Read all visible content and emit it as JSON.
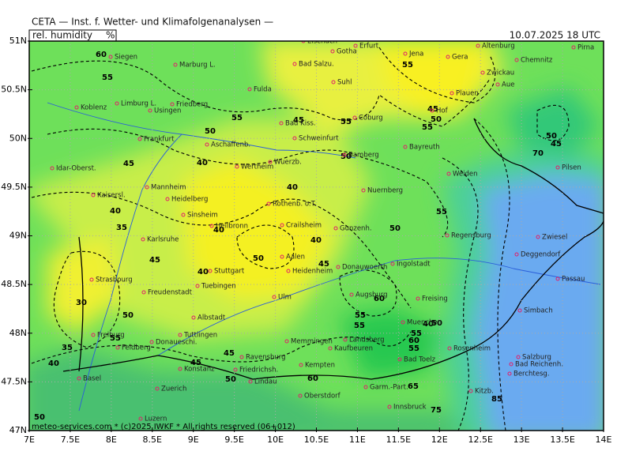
{
  "header": {
    "title": "CETA — Inst. f. Wetter- und Klimafolgenanalysen —",
    "parameter": "rel. humidity",
    "unit": "%",
    "valid_time": "10.07.2025 18 UTC"
  },
  "footer": "meteo-services.com * (c)2025 IWKF * All rights reserved (06+012)",
  "lat_ticks": [
    {
      "value": 51,
      "label": "51N"
    },
    {
      "value": 50.5,
      "label": "50.5N"
    },
    {
      "value": 50,
      "label": "50N"
    },
    {
      "value": 49.5,
      "label": "49.5N"
    },
    {
      "value": 49,
      "label": "49N"
    },
    {
      "value": 48.5,
      "label": "48.5N"
    },
    {
      "value": 48,
      "label": "48N"
    },
    {
      "value": 47.5,
      "label": "47.5N"
    },
    {
      "value": 47,
      "label": "47N"
    }
  ],
  "lon_ticks": [
    {
      "value": 7,
      "label": "7E"
    },
    {
      "value": 7.5,
      "label": "7.5E"
    },
    {
      "value": 8,
      "label": "8E"
    },
    {
      "value": 8.5,
      "label": "8.5E"
    },
    {
      "value": 9,
      "label": "9E"
    },
    {
      "value": 9.5,
      "label": "9.5E"
    },
    {
      "value": 10,
      "label": "10E"
    },
    {
      "value": 10.5,
      "label": "10.5E"
    },
    {
      "value": 11,
      "label": "11E"
    },
    {
      "value": 11.5,
      "label": "11.5E"
    },
    {
      "value": 12,
      "label": "12E"
    },
    {
      "value": 12.5,
      "label": "12.5E"
    },
    {
      "value": 13,
      "label": "13E"
    },
    {
      "value": 13.5,
      "label": "13.5E"
    },
    {
      "value": 14,
      "label": "14E"
    }
  ],
  "cities": [
    "Siegen",
    "Marburg L.",
    "Koblenz",
    "Limburg L.",
    "Friedberg",
    "Usingen",
    "Fulda",
    "Bad Salzu.",
    "Eisenach",
    "Gotha",
    "Erfurt",
    "Jena",
    "Gera",
    "Altenburg",
    "Chemnitz",
    "Pirna",
    "Plauen",
    "Zwickau",
    "Aue",
    "Hof",
    "Suhl",
    "Coburg",
    "Bad Kiss.",
    "Schweinfurt",
    "Frankfurt",
    "Aschaffenb.",
    "Wuerzb.",
    "Bamberg",
    "Bayreuth",
    "Weiden",
    "Pilsen",
    "Idar-Oberst.",
    "Wertheim",
    "Nuernberg",
    "Kaisersl.",
    "Mannheim",
    "Heidelberg",
    "Sinsheim",
    "Heilbronn",
    "Rothenb. o.T.",
    "Crailsheim",
    "Gunzenh.",
    "Karlsruhe",
    "Regensburg",
    "Zwiesel",
    "Deggendorf",
    "Aalen",
    "Heidenheim",
    "Donauwoerth",
    "Ingolstadt",
    "Stuttgart",
    "Strasbourg",
    "Tuebingen",
    "Freudenstadt",
    "Passau",
    "Ulm",
    "Augsburg",
    "Freising",
    "Albstadt",
    "Simbach",
    "Muenchen",
    "Tuttlingen",
    "Donaueschi.",
    "Freiburg",
    "Feldberg",
    "Memmingen",
    "Landsberg",
    "Kaufbeuren",
    "Rosenheim",
    "Salzburg",
    "Bad Toelz",
    "Bad Reichenh.",
    "Berchtesg.",
    "Ravensburg",
    "Konstanz",
    "Friedrichsh.",
    "Kempten",
    "Lindau",
    "Basel",
    "Zuerich",
    "Oberstdorf",
    "Garm.-Part.",
    "Kitzb.",
    "Innsbruck",
    "Luzern"
  ],
  "contour_labels": [
    "60",
    "55",
    "55",
    "50",
    "55",
    "45",
    "40",
    "45",
    "50",
    "55",
    "55",
    "50",
    "45",
    "50",
    "55",
    "40",
    "40",
    "35",
    "40",
    "45",
    "40",
    "45",
    "50",
    "40",
    "30",
    "35",
    "40",
    "45",
    "50",
    "55",
    "45",
    "40",
    "50",
    "55",
    "55",
    "60",
    "60",
    "50",
    "55",
    "55",
    "60",
    "65",
    "70",
    "75",
    "85",
    "50",
    "45",
    "50"
  ]
}
